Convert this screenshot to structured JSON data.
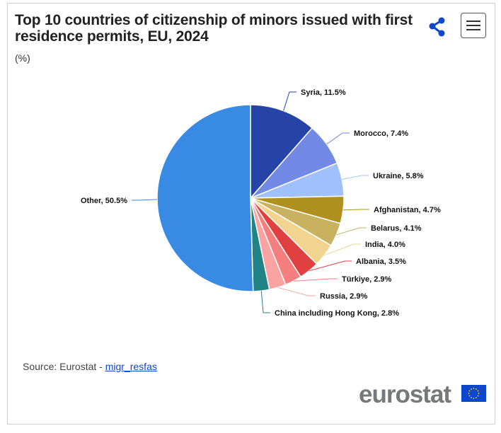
{
  "header": {
    "title": "Top 10 countries of citizenship of minors issued with first residence permits, EU, 2024",
    "subtitle": "(%)",
    "share_icon": "share-icon",
    "menu_icon": "hamburger-menu-icon"
  },
  "chart_data": {
    "type": "pie",
    "title": "Top 10 countries of citizenship of minors issued with first residence permits, EU, 2024",
    "unit": "%",
    "slices": [
      {
        "label": "Syria",
        "value": 11.5,
        "text": "Syria, 11.5%",
        "color": "#2644a7"
      },
      {
        "label": "Morocco",
        "value": 7.4,
        "text": "Morocco, 7.4%",
        "color": "#7289e6"
      },
      {
        "label": "Ukraine",
        "value": 5.8,
        "text": "Ukraine, 5.8%",
        "color": "#a0c1fb"
      },
      {
        "label": "Afghanistan",
        "value": 4.7,
        "text": "Afghanistan, 4.7%",
        "color": "#b09120"
      },
      {
        "label": "Belarus",
        "value": 4.1,
        "text": "Belarus, 4.1%",
        "color": "#c8b15f"
      },
      {
        "label": "India",
        "value": 4.0,
        "text": "India, 4.0%",
        "color": "#f0d48f"
      },
      {
        "label": "Albania",
        "value": 3.5,
        "text": "Albania, 3.5%",
        "color": "#e04040"
      },
      {
        "label": "Türkiye",
        "value": 2.9,
        "text": "Türkiye, 2.9%",
        "color": "#f57f7f"
      },
      {
        "label": "Russia",
        "value": 2.9,
        "text": "Russia, 2.9%",
        "color": "#fba3a3"
      },
      {
        "label": "China including Hong Kong",
        "value": 2.8,
        "text": "China including Hong Kong, 2.8%",
        "color": "#208486"
      },
      {
        "label": "Other",
        "value": 50.5,
        "text": "Other, 50.5%",
        "color": "#388ae2"
      }
    ]
  },
  "footer": {
    "source_prefix": "Source: Eurostat - ",
    "source_link": "migr_resfas",
    "logo_text": "eurostat"
  }
}
